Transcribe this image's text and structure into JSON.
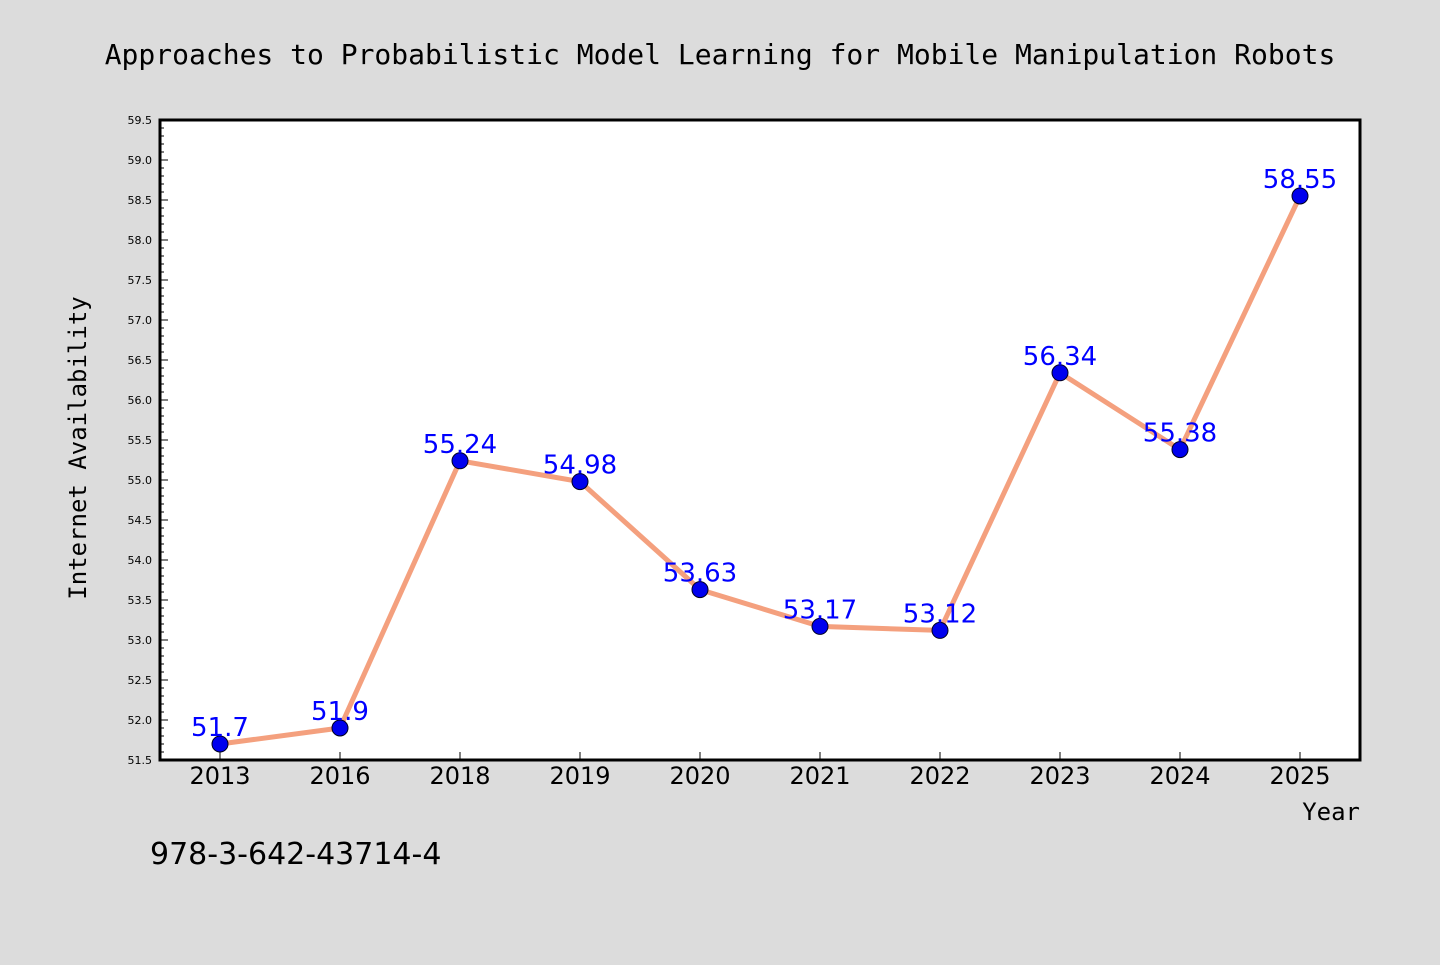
{
  "chart_data": {
    "type": "line",
    "title": "Approaches to Probabilistic Model Learning for Mobile Manipulation Robots",
    "xlabel": "Year",
    "ylabel": "Internet Availability",
    "categories": [
      "2013",
      "2016",
      "2018",
      "2019",
      "2020",
      "2021",
      "2022",
      "2023",
      "2024",
      "2025"
    ],
    "series": [
      {
        "values": [
          51.7,
          51.9,
          55.24,
          54.98,
          53.63,
          53.17,
          53.12,
          56.34,
          55.38,
          58.55
        ],
        "value_labels": [
          "51.7",
          "51.9",
          "55.24",
          "54.98",
          "53.63",
          "53.17",
          "53.12",
          "56.34",
          "55.38",
          "58.55"
        ]
      }
    ],
    "yticks": [
      "51.5",
      "52.0",
      "52.5",
      "53.0",
      "53.5",
      "54.0",
      "54.5",
      "55.0",
      "55.5",
      "56.0",
      "56.5",
      "57.0",
      "57.5",
      "58.0",
      "58.5",
      "59.0",
      "59.5"
    ],
    "ylim": [
      51.5,
      59.5
    ],
    "grid": false,
    "legend": "none",
    "colors": {
      "background": "#dcdcdc",
      "plot_area": "#ffffff",
      "line": "#f4a07e",
      "marker": "#0000ee",
      "data_label": "#0000ff",
      "text": "#000000"
    }
  },
  "annotation": "978-3-642-43714-4"
}
